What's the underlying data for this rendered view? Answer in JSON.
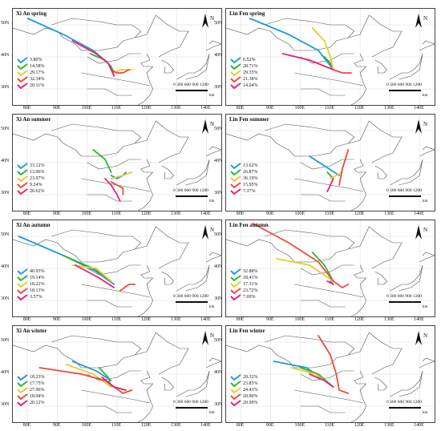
{
  "series_colors": [
    "#1e9be0",
    "#2eb52e",
    "#e6cd28",
    "#ef4a3a",
    "#e8207a"
  ],
  "xticks": [
    "80E",
    "90E",
    "100E",
    "110E",
    "120E",
    "130E",
    "140E"
  ],
  "yticks": [
    "50N",
    "40N",
    "30N"
  ],
  "north_label": "N",
  "scale_label": "0  300 600 900 1200",
  "scale_unit": "km",
  "panels": [
    {
      "title": "Xi An spring",
      "values": [
        "3.80%",
        "14.58%",
        "29.17%",
        "32.34%",
        "20.11%"
      ]
    },
    {
      "title": "Lin Fen spring",
      "values": [
        "6.52%",
        "28.71%",
        "29.35%",
        "21.38%",
        "14.04%"
      ]
    },
    {
      "title": "Xi An summer",
      "values": [
        "33.12%",
        "13.06%",
        "23.97%",
        "9.24%",
        "20.62%"
      ]
    },
    {
      "title": "Lin Fen summer",
      "values": [
        "13.62%",
        "26.87%",
        "36.19%",
        "15.95%",
        "7.37%"
      ]
    },
    {
      "title": "Xi An autumn",
      "values": [
        "40.93%",
        "19.14%",
        "18.22%",
        "18.13%",
        "3.57%"
      ]
    },
    {
      "title": "Lin Fen autumn",
      "values": [
        "32.88%",
        "18.41%",
        "17.31%",
        "23.72%",
        "7.69%"
      ]
    },
    {
      "title": "Xi An winter",
      "values": [
        "18.23%",
        "17.75%",
        "27.96%",
        "18.94%",
        "20.12%"
      ]
    },
    {
      "title": "Lin Fen winter",
      "values": [
        "20.32%",
        "23.85%",
        "24.43%",
        "20.90%",
        "20.99%"
      ]
    }
  ]
}
